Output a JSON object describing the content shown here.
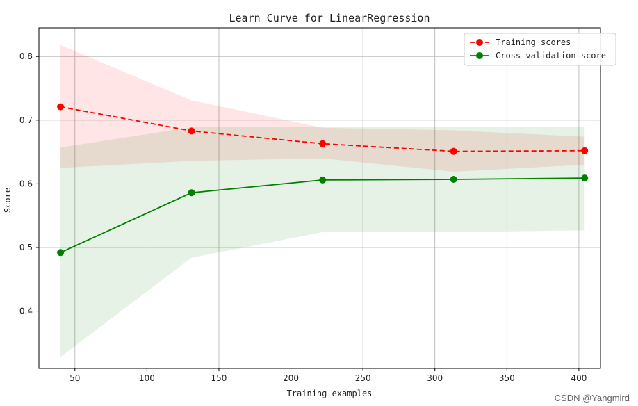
{
  "chart_data": {
    "type": "line",
    "title": "Learn Curve for LinearRegression",
    "xlabel": "Training examples",
    "ylabel": "Score",
    "xlim": [
      25,
      415
    ],
    "ylim": [
      0.31,
      0.845
    ],
    "xticks": [
      50,
      100,
      150,
      200,
      250,
      300,
      350,
      400
    ],
    "yticks": [
      0.4,
      0.5,
      0.6,
      0.7,
      0.8
    ],
    "grid": true,
    "legend_position": "top-right",
    "x": [
      40,
      131,
      222,
      313,
      404
    ],
    "series": [
      {
        "name": "Training scores",
        "color": "#ff0000",
        "line_style": "dashed",
        "values": [
          0.721,
          0.683,
          0.663,
          0.651,
          0.652
        ],
        "band_upper": [
          0.818,
          0.731,
          0.688,
          0.684,
          0.674
        ],
        "band_lower": [
          0.625,
          0.636,
          0.64,
          0.619,
          0.63
        ]
      },
      {
        "name": "Cross-validation score",
        "color": "#008000",
        "line_style": "solid",
        "values": [
          0.492,
          0.586,
          0.606,
          0.607,
          0.609
        ],
        "band_upper": [
          0.657,
          0.689,
          0.689,
          0.69,
          0.69
        ],
        "band_lower": [
          0.328,
          0.484,
          0.524,
          0.524,
          0.527
        ]
      }
    ]
  },
  "watermark": "CSDN @Yangmird"
}
